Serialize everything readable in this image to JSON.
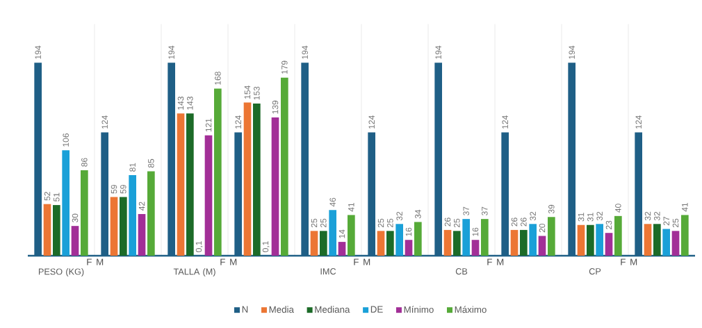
{
  "chart_data": {
    "type": "bar",
    "categories": [
      "PESO (KG)",
      null,
      "TALLA (M)",
      null,
      "IMC",
      null,
      "CB",
      null,
      "CP",
      null
    ],
    "series": [
      {
        "name": "N",
        "color": "#1f5f86",
        "values": [
          194,
          124,
          194,
          124,
          194,
          124,
          194,
          124,
          194,
          124
        ],
        "value_labels": [
          "194",
          "124",
          "194",
          "124",
          "194",
          "124",
          "194",
          "124",
          "194",
          "124"
        ]
      },
      {
        "name": "Media",
        "color": "#ec7634",
        "values": [
          52,
          59,
          143,
          154,
          25,
          25,
          26,
          26,
          31,
          32
        ],
        "value_labels": [
          "52",
          "59",
          "143",
          "154",
          "25",
          "25",
          "26",
          "26",
          "31",
          "32"
        ]
      },
      {
        "name": "Mediana",
        "color": "#1c6b28",
        "values": [
          51,
          59,
          143,
          153,
          25,
          25,
          25,
          26,
          31,
          32
        ],
        "value_labels": [
          "51",
          "59",
          "143",
          "153",
          "25",
          "25",
          "25",
          "26",
          "31",
          "32"
        ]
      },
      {
        "name": "DE",
        "color": "#1aa0d8",
        "values": [
          106,
          81,
          0.1,
          0.1,
          46,
          32,
          37,
          32,
          32,
          27
        ],
        "value_labels": [
          "106",
          "81",
          "0,1",
          "0,1",
          "46",
          "32",
          "37",
          "32",
          "32",
          "27"
        ]
      },
      {
        "name": "Mínimo",
        "color": "#a22f97",
        "values": [
          30,
          42,
          121,
          139,
          14,
          16,
          16,
          20,
          23,
          25
        ],
        "value_labels": [
          "30",
          "42",
          "121",
          "139",
          "14",
          "16",
          "16",
          "20",
          "23",
          "25"
        ]
      },
      {
        "name": "Máximo",
        "color": "#56aa38",
        "values": [
          86,
          85,
          168,
          179,
          41,
          34,
          37,
          39,
          40,
          41
        ],
        "value_labels": [
          "86",
          "85",
          "168",
          "179",
          "41",
          "34",
          "37",
          "39",
          "40",
          "41"
        ]
      }
    ],
    "annotations": [
      "F",
      "M",
      "F",
      "M",
      "F",
      "M",
      "F",
      "M",
      "F",
      "M"
    ],
    "grid": "x",
    "legend": "bottom"
  }
}
